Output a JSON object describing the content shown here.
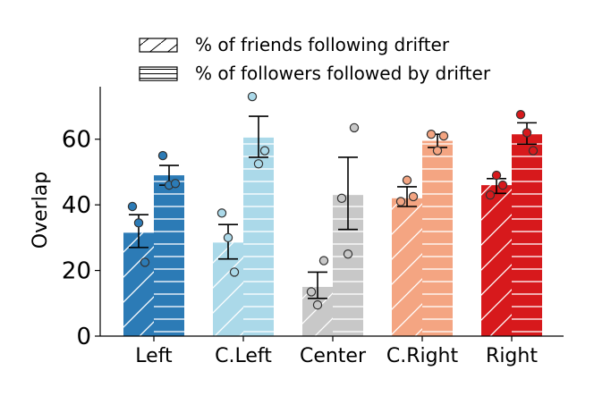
{
  "chart_data": {
    "type": "bar",
    "categories": [
      "Left",
      "C.Left",
      "Center",
      "C.Right",
      "Right"
    ],
    "ylabel": "Overlap",
    "xlabel": "",
    "ylim": [
      0,
      76
    ],
    "yticks": [
      0,
      20,
      40,
      60
    ],
    "grid": false,
    "legend_position": "top",
    "colors": [
      "#2c7bb6",
      "#abd9e9",
      "#c8c8c8",
      "#f4a582",
      "#d7191c"
    ],
    "series": [
      {
        "name": "% of friends following drifter",
        "hatch": "diagonal",
        "values": [
          31.5,
          28.5,
          15,
          42,
          46
        ],
        "error": [
          [
            27,
            37
          ],
          [
            23.5,
            34
          ],
          [
            11.5,
            19.5
          ],
          [
            39.5,
            45.5
          ],
          [
            43.5,
            48
          ]
        ],
        "points": [
          [
            39.5,
            34.5,
            22.5
          ],
          [
            37.5,
            30,
            19.5
          ],
          [
            13.5,
            9.5,
            23
          ],
          [
            41,
            47.5,
            42.5
          ],
          [
            43,
            49,
            46
          ]
        ]
      },
      {
        "name": "% of followers followed by drifter",
        "hatch": "horizontal",
        "values": [
          49,
          60.5,
          43,
          59.5,
          61.5
        ],
        "error": [
          [
            46,
            52
          ],
          [
            54.5,
            67
          ],
          [
            32.5,
            54.5
          ],
          [
            57.5,
            61.5
          ],
          [
            58.5,
            65
          ]
        ],
        "points": [
          [
            55,
            46,
            46.5
          ],
          [
            73,
            52.5,
            56.5
          ],
          [
            42,
            25,
            63.5
          ],
          [
            61.5,
            56.5,
            61
          ],
          [
            67.5,
            62,
            56.5
          ]
        ]
      }
    ]
  }
}
